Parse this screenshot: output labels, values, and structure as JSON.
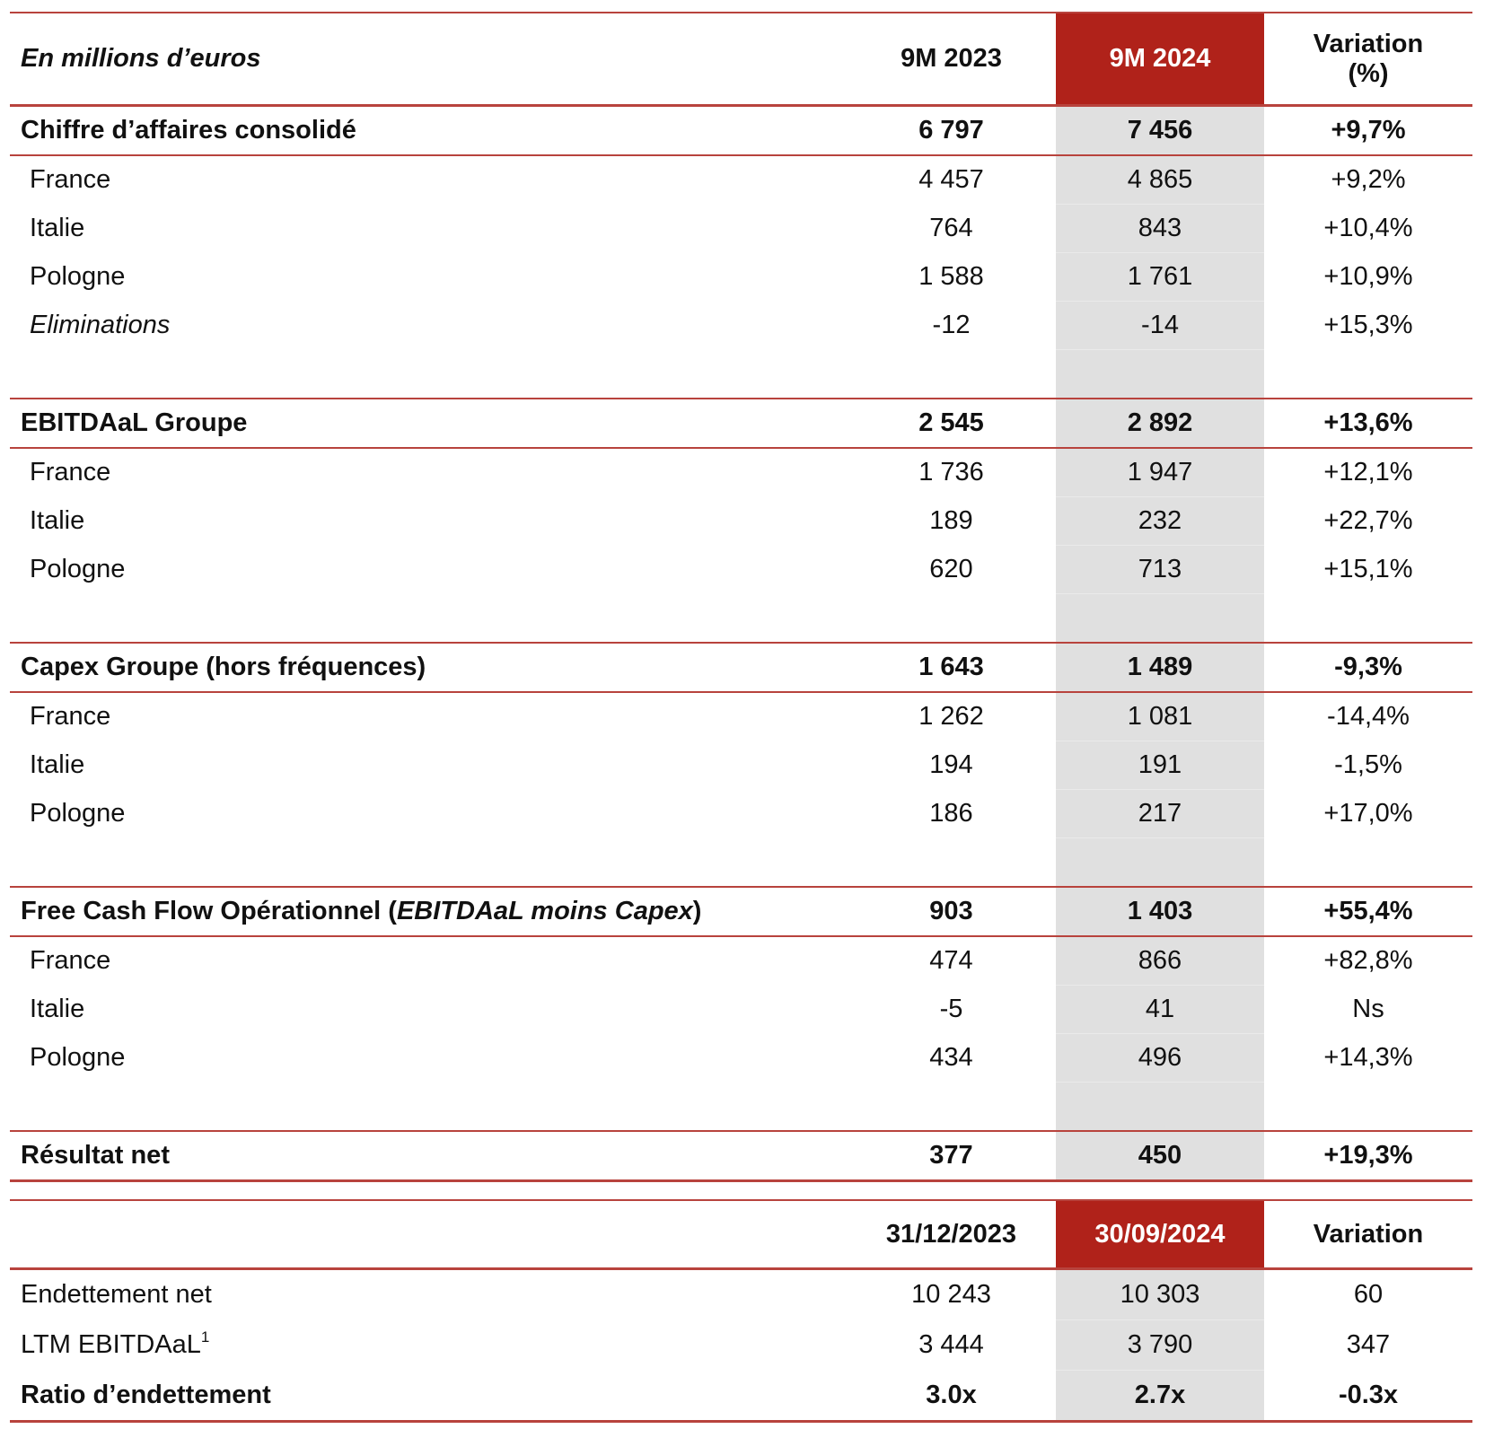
{
  "colors": {
    "accent": "#b0221a",
    "highlight_column": "#e0e0e0",
    "rule": "#b8433d"
  },
  "table1": {
    "header": {
      "label": "En millions d’euros",
      "col1": "9M 2023",
      "col2": "9M 2024",
      "col3_line1": "Variation",
      "col3_line2": "(%)"
    },
    "rows": [
      {
        "type": "section",
        "label": "Chiffre d’affaires consolidé",
        "v1": "6 797",
        "v2": "7 456",
        "v3": "+9,7%"
      },
      {
        "type": "item",
        "label": "France",
        "v1": "4 457",
        "v2": "4 865",
        "v3": "+9,2%"
      },
      {
        "type": "item",
        "label": "Italie",
        "v1": "764",
        "v2": "843",
        "v3": "+10,4%"
      },
      {
        "type": "item",
        "label": "Pologne",
        "v1": "1 588",
        "v2": "1 761",
        "v3": "+10,9%"
      },
      {
        "type": "item",
        "italic": true,
        "label": "Eliminations",
        "v1": "-12",
        "v2": "-14",
        "v3": "+15,3%"
      },
      {
        "type": "blank"
      },
      {
        "type": "section",
        "label": "EBITDAaL Groupe",
        "v1": "2 545",
        "v2": "2 892",
        "v3": "+13,6%"
      },
      {
        "type": "item",
        "label": "France",
        "v1": "1 736",
        "v2": "1 947",
        "v3": "+12,1%"
      },
      {
        "type": "item",
        "label": "Italie",
        "v1": "189",
        "v2": "232",
        "v3": "+22,7%"
      },
      {
        "type": "item",
        "label": "Pologne",
        "v1": "620",
        "v2": "713",
        "v3": "+15,1%"
      },
      {
        "type": "blank"
      },
      {
        "type": "section",
        "label": "Capex Groupe (hors fréquences)",
        "v1": "1 643",
        "v2": "1 489",
        "v3": "-9,3%"
      },
      {
        "type": "item",
        "label": "France",
        "v1": "1 262",
        "v2": "1 081",
        "v3": "-14,4%"
      },
      {
        "type": "item",
        "label": "Italie",
        "v1": "194",
        "v2": "191",
        "v3": "-1,5%"
      },
      {
        "type": "item",
        "label": "Pologne",
        "v1": "186",
        "v2": "217",
        "v3": "+17,0%"
      },
      {
        "type": "blank"
      },
      {
        "type": "section",
        "label": "Free Cash Flow Opérationnel (",
        "label_em": "EBITDAaL moins Capex",
        "label_after": ")",
        "v1": "903",
        "v2": "1 403",
        "v3": "+55,4%"
      },
      {
        "type": "item",
        "label": "France",
        "v1": "474",
        "v2": "866",
        "v3": "+82,8%"
      },
      {
        "type": "item",
        "label": "Italie",
        "v1": "-5",
        "v2": "41",
        "v3": "Ns"
      },
      {
        "type": "item",
        "label": "Pologne",
        "v1": "434",
        "v2": "496",
        "v3": "+14,3%"
      },
      {
        "type": "blank"
      },
      {
        "type": "section",
        "label": "Résultat net",
        "v1": "377",
        "v2": "450",
        "v3": "+19,3%"
      }
    ]
  },
  "table2": {
    "header": {
      "label": "",
      "col1": "31/12/2023",
      "col2": "30/09/2024",
      "col3": "Variation"
    },
    "rows": [
      {
        "label": "Endettement net",
        "v1": "10 243",
        "v2": "10 303",
        "v3": "60"
      },
      {
        "label": "LTM EBITDAaL",
        "sup": "1",
        "v1": "3 444",
        "v2": "3 790",
        "v3": "347"
      },
      {
        "label": "Ratio d’endettement",
        "bold": true,
        "v1": "3.0x",
        "v2": "2.7x",
        "v3": "-0.3x"
      }
    ]
  }
}
